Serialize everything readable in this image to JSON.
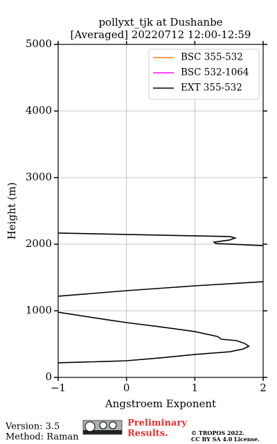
{
  "chart_data": {
    "type": "line",
    "title": [
      "pollyxt_tjk at Dushanbe",
      "[Averaged] 20220712 12:00-12:59"
    ],
    "x_label": "Angstroem Exponent",
    "y_label": "Height (m)",
    "xlim": [
      -1,
      2
    ],
    "xticks": [
      {
        "value": -1,
        "label": "−1"
      },
      0,
      1,
      2
    ],
    "ylim": [
      0,
      5000
    ],
    "yticks": [
      0,
      1000,
      2000,
      3000,
      4000,
      5000
    ],
    "grid": true,
    "legend": "upper right",
    "series": [
      {
        "name": "BSC 355-532",
        "color": "#ff7f0e",
        "values": [],
        "heights": []
      },
      {
        "name": "BSC 532-1064",
        "color": "#ff00ff",
        "values": [],
        "heights": []
      },
      {
        "name": "EXT 355-532",
        "color": "#000000",
        "values": [
          -1,
          1.51,
          1.59,
          1.51,
          1.28,
          1.31,
          2.0,
          null,
          2.0,
          1.0,
          0,
          -1,
          null,
          -1,
          -0.28,
          0,
          0.49,
          1.0,
          1.33,
          1.39,
          1.61,
          1.73,
          1.79,
          1.71,
          1.51,
          1.0,
          0.49,
          0,
          -0.28,
          -1
        ],
        "heights": [
          2167,
          2115,
          2094,
          2063,
          2031,
          2010,
          1979,
          null,
          1437,
          1375,
          1302,
          1219,
          null,
          979,
          865,
          823,
          760,
          688,
          615,
          573,
          552,
          510,
          469,
          427,
          385,
          344,
          292,
          250,
          240,
          219
        ]
      }
    ]
  },
  "footer": {
    "version": "Version: 3.5",
    "method": "Method: Raman",
    "preliminary": [
      "Preliminary",
      "Results."
    ],
    "license": [
      "© TROPOS 2022.",
      "CC BY SA 4.0 License."
    ]
  }
}
